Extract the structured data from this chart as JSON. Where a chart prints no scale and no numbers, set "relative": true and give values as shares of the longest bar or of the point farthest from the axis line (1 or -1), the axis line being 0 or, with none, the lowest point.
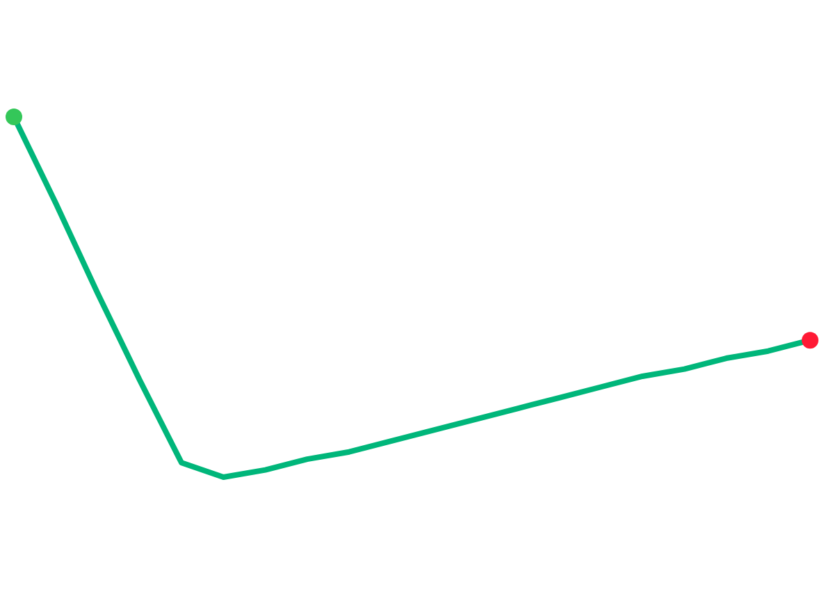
{
  "chart_data": {
    "type": "line",
    "relative": true,
    "legend": false,
    "categories": [
      null,
      null,
      null,
      null,
      null,
      null,
      null,
      null,
      null,
      null,
      null,
      null,
      null,
      null,
      null,
      null,
      null,
      null,
      null,
      null
    ],
    "series": [
      {
        "color": "#00b67a",
        "values": [
          1,
          0.76,
          0.51,
          0.27,
          0.04,
          0,
          0.02,
          0.05,
          0.07,
          0.1,
          0.13,
          0.16,
          0.19,
          0.22,
          0.25,
          0.28,
          0.3,
          0.33,
          0.35,
          0.38
        ],
        "colors": [
          "#34c759",
          null,
          null,
          null,
          null,
          null,
          null,
          null,
          null,
          null,
          null,
          null,
          null,
          null,
          null,
          null,
          null,
          null,
          null,
          "#ff1a35"
        ]
      }
    ]
  }
}
